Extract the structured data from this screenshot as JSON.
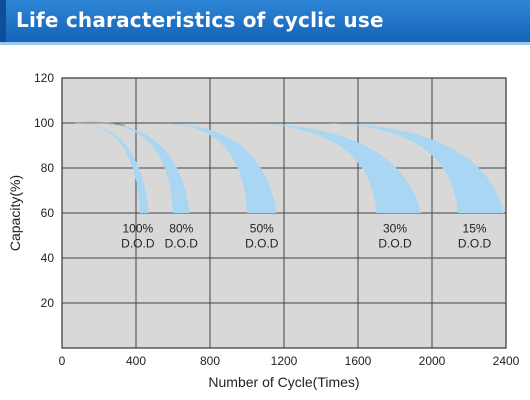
{
  "header": {
    "title": "Life characteristics of cyclic use"
  },
  "chart_data": {
    "type": "area",
    "title": "",
    "xlabel": "Number of Cycle(Times)",
    "ylabel": "Capacity(%)",
    "xlim": [
      0,
      2400
    ],
    "ylim": [
      0,
      120
    ],
    "xticks": [
      0,
      400,
      800,
      1200,
      1600,
      2000,
      2400
    ],
    "yticks": [
      20,
      40,
      60,
      80,
      100,
      120
    ],
    "grid": true,
    "background_color": "#d8d8d8",
    "band_color": "#a9d6f2",
    "series": [
      {
        "name": "100% D.O.D",
        "label_top": "100%",
        "label_bottom": "D.O.D",
        "label_x": 410,
        "label_y": 58,
        "start": [
          70,
          100
        ],
        "end_left": [
          420,
          60
        ],
        "end_right": [
          470,
          60
        ]
      },
      {
        "name": "80% D.O.D",
        "label_top": "80%",
        "label_bottom": "D.O.D",
        "label_x": 645,
        "label_y": 58,
        "start": [
          180,
          100
        ],
        "end_left": [
          600,
          60
        ],
        "end_right": [
          690,
          60
        ]
      },
      {
        "name": "50% D.O.D",
        "label_top": "50%",
        "label_bottom": "D.O.D",
        "label_x": 1080,
        "label_y": 58,
        "start": [
          530,
          100
        ],
        "end_left": [
          1000,
          60
        ],
        "end_right": [
          1160,
          60
        ]
      },
      {
        "name": "30% D.O.D",
        "label_top": "30%",
        "label_bottom": "D.O.D",
        "label_x": 1800,
        "label_y": 58,
        "start": [
          960,
          100
        ],
        "end_left": [
          1700,
          60
        ],
        "end_right": [
          1940,
          60
        ]
      },
      {
        "name": "15% D.O.D",
        "label_top": "15%",
        "label_bottom": "D.O.D",
        "label_x": 2230,
        "label_y": 58,
        "start": [
          1380,
          100
        ],
        "end_left": [
          2140,
          60
        ],
        "end_right": [
          2390,
          60
        ]
      }
    ],
    "initial_curve": {
      "from": [
        70,
        100
      ],
      "to": [
        340,
        99
      ]
    }
  }
}
